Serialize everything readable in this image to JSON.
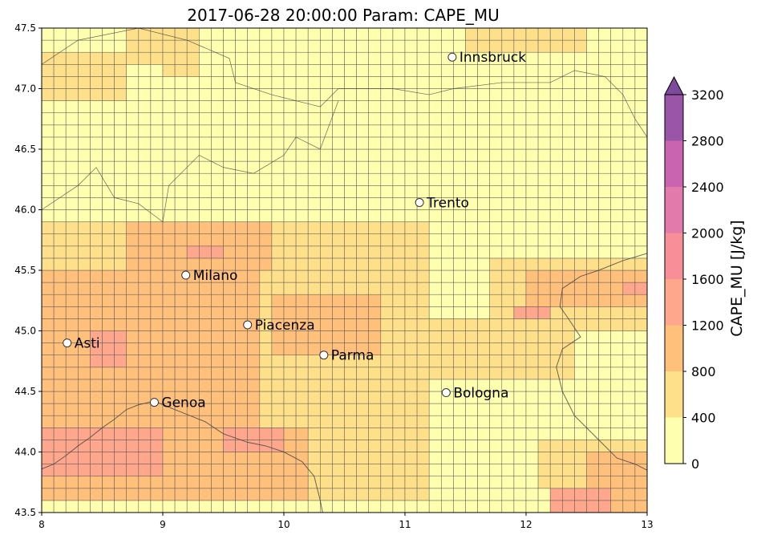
{
  "title": "2017-06-28 20:00:00 Param: CAPE_MU",
  "axes": {
    "lon_range": [
      8,
      13
    ],
    "lat_range": [
      43.5,
      47.5
    ],
    "x_ticks": [
      "8",
      "9",
      "10",
      "11",
      "12",
      "13"
    ],
    "y_ticks": [
      "43.5",
      "44.0",
      "44.5",
      "45.0",
      "45.5",
      "46.0",
      "46.5",
      "47.0",
      "47.5"
    ]
  },
  "colorbar": {
    "label": "CAPE_MU  [J/kg]",
    "ticks": [
      "0",
      "400",
      "800",
      "1200",
      "1600",
      "2000",
      "2400",
      "2800",
      "3200"
    ],
    "levels": [
      0,
      400,
      800,
      1200,
      1600,
      2000,
      2400,
      2800,
      3200
    ],
    "colors": [
      "#ffffb0",
      "#ffe08a",
      "#ffc07c",
      "#ffa78c",
      "#f78e98",
      "#e27aab",
      "#c864b0",
      "#9a55a8"
    ],
    "extend": "max"
  },
  "cities": [
    {
      "name": "Innsbruck",
      "lon": 11.39,
      "lat": 47.26
    },
    {
      "name": "Trento",
      "lon": 11.12,
      "lat": 46.06
    },
    {
      "name": "Milano",
      "lon": 9.19,
      "lat": 45.46
    },
    {
      "name": "Piacenza",
      "lon": 9.7,
      "lat": 45.05
    },
    {
      "name": "Asti",
      "lon": 8.21,
      "lat": 44.9
    },
    {
      "name": "Parma",
      "lon": 10.33,
      "lat": 44.8
    },
    {
      "name": "Bologna",
      "lon": 11.34,
      "lat": 44.49
    },
    {
      "name": "Genoa",
      "lon": 8.93,
      "lat": 44.41
    }
  ],
  "chart_data": {
    "type": "heatmap",
    "grid": {
      "lon_start": 8,
      "lat_start": 43.5,
      "cell_deg": 0.1,
      "cols": 50,
      "rows": 40
    },
    "field_description": "CAPE_MU values per grid cell, estimated from colors; 1 = 0-400, 2 = 400-800, 3 = 800-1200, 4 = 1200-1600 J/kg",
    "regions": [
      {
        "bin": 2,
        "lon": [
          9.0,
          9.3
        ],
        "lat": [
          47.1,
          47.5
        ]
      },
      {
        "bin": 2,
        "lon": [
          8.0,
          8.7
        ],
        "lat": [
          46.9,
          47.3
        ]
      },
      {
        "bin": 2,
        "lon": [
          8.7,
          9.2
        ],
        "lat": [
          47.2,
          47.5
        ]
      },
      {
        "bin": 2,
        "lon": [
          11.5,
          12.5
        ],
        "lat": [
          47.3,
          47.5
        ]
      },
      {
        "bin": 2,
        "lon": [
          8.0,
          11.2
        ],
        "lat": [
          43.6,
          45.9
        ]
      },
      {
        "bin": 2,
        "lon": [
          10.5,
          12.4
        ],
        "lat": [
          44.6,
          45.1
        ]
      },
      {
        "bin": 2,
        "lon": [
          11.7,
          13.0
        ],
        "lat": [
          45.0,
          45.6
        ]
      },
      {
        "bin": 2,
        "lon": [
          12.1,
          13.0
        ],
        "lat": [
          43.7,
          44.1
        ]
      },
      {
        "bin": 3,
        "lon": [
          8.7,
          9.9
        ],
        "lat": [
          45.5,
          45.9
        ]
      },
      {
        "bin": 3,
        "lon": [
          8.0,
          9.8
        ],
        "lat": [
          44.2,
          45.5
        ]
      },
      {
        "bin": 3,
        "lon": [
          8.0,
          10.2
        ],
        "lat": [
          43.6,
          44.2
        ]
      },
      {
        "bin": 3,
        "lon": [
          9.9,
          10.8
        ],
        "lat": [
          44.8,
          45.3
        ]
      },
      {
        "bin": 3,
        "lon": [
          12.0,
          13.0
        ],
        "lat": [
          45.2,
          45.5
        ]
      },
      {
        "bin": 3,
        "lon": [
          12.5,
          13.0
        ],
        "lat": [
          43.5,
          44.0
        ]
      },
      {
        "bin": 4,
        "lon": [
          8.0,
          9.0
        ],
        "lat": [
          43.8,
          44.2
        ]
      },
      {
        "bin": 4,
        "lon": [
          8.4,
          8.7
        ],
        "lat": [
          44.7,
          45.0
        ]
      },
      {
        "bin": 4,
        "lon": [
          9.2,
          9.5
        ],
        "lat": [
          45.6,
          45.7
        ]
      },
      {
        "bin": 4,
        "lon": [
          9.5,
          10.0
        ],
        "lat": [
          44.0,
          44.2
        ]
      },
      {
        "bin": 4,
        "lon": [
          12.2,
          12.7
        ],
        "lat": [
          43.5,
          43.7
        ]
      },
      {
        "bin": 4,
        "lon": [
          12.8,
          13.0
        ],
        "lat": [
          45.3,
          45.4
        ]
      },
      {
        "bin": 4,
        "lon": [
          11.9,
          12.2
        ],
        "lat": [
          45.1,
          45.2
        ]
      }
    ]
  },
  "features": {
    "coastline": [
      [
        8.0,
        43.86
      ],
      [
        8.1,
        43.9
      ],
      [
        8.2,
        43.97
      ],
      [
        8.3,
        44.05
      ],
      [
        8.4,
        44.12
      ],
      [
        8.5,
        44.2
      ],
      [
        8.6,
        44.27
      ],
      [
        8.7,
        44.35
      ],
      [
        8.8,
        44.39
      ],
      [
        8.93,
        44.42
      ],
      [
        9.05,
        44.37
      ],
      [
        9.2,
        44.31
      ],
      [
        9.35,
        44.25
      ],
      [
        9.5,
        44.15
      ],
      [
        9.7,
        44.08
      ],
      [
        9.85,
        44.05
      ],
      [
        10.0,
        44.0
      ],
      [
        10.15,
        43.92
      ],
      [
        10.25,
        43.8
      ],
      [
        10.3,
        43.6
      ],
      [
        10.32,
        43.5
      ]
    ],
    "adriatic_coast": [
      [
        13.0,
        45.64
      ],
      [
        12.8,
        45.58
      ],
      [
        12.6,
        45.5
      ],
      [
        12.45,
        45.45
      ],
      [
        12.3,
        45.35
      ],
      [
        12.28,
        45.2
      ],
      [
        12.35,
        45.1
      ],
      [
        12.45,
        44.95
      ],
      [
        12.3,
        44.85
      ],
      [
        12.25,
        44.7
      ],
      [
        12.3,
        44.5
      ],
      [
        12.4,
        44.3
      ],
      [
        12.6,
        44.1
      ],
      [
        12.75,
        43.95
      ],
      [
        12.9,
        43.9
      ],
      [
        13.0,
        43.85
      ]
    ],
    "border_alpine": [
      [
        8.0,
        47.2
      ],
      [
        8.3,
        47.4
      ],
      [
        8.8,
        47.5
      ],
      [
        9.2,
        47.4
      ],
      [
        9.55,
        47.25
      ],
      [
        9.6,
        47.05
      ],
      [
        9.9,
        46.95
      ],
      [
        10.3,
        46.85
      ],
      [
        10.45,
        47.0
      ],
      [
        10.9,
        47.0
      ],
      [
        11.2,
        46.95
      ],
      [
        11.4,
        47.0
      ],
      [
        11.8,
        47.05
      ],
      [
        12.2,
        47.05
      ],
      [
        12.4,
        47.15
      ],
      [
        12.65,
        47.1
      ],
      [
        12.8,
        46.95
      ],
      [
        12.9,
        46.75
      ],
      [
        13.0,
        46.6
      ]
    ],
    "border_swiss_italy": [
      [
        8.0,
        46.0
      ],
      [
        8.3,
        46.2
      ],
      [
        8.45,
        46.35
      ],
      [
        8.6,
        46.1
      ],
      [
        8.8,
        46.05
      ],
      [
        9.0,
        45.9
      ],
      [
        9.05,
        46.2
      ],
      [
        9.3,
        46.45
      ],
      [
        9.5,
        46.35
      ],
      [
        9.75,
        46.3
      ],
      [
        10.0,
        46.45
      ],
      [
        10.1,
        46.6
      ],
      [
        10.3,
        46.5
      ],
      [
        10.45,
        46.9
      ]
    ]
  }
}
